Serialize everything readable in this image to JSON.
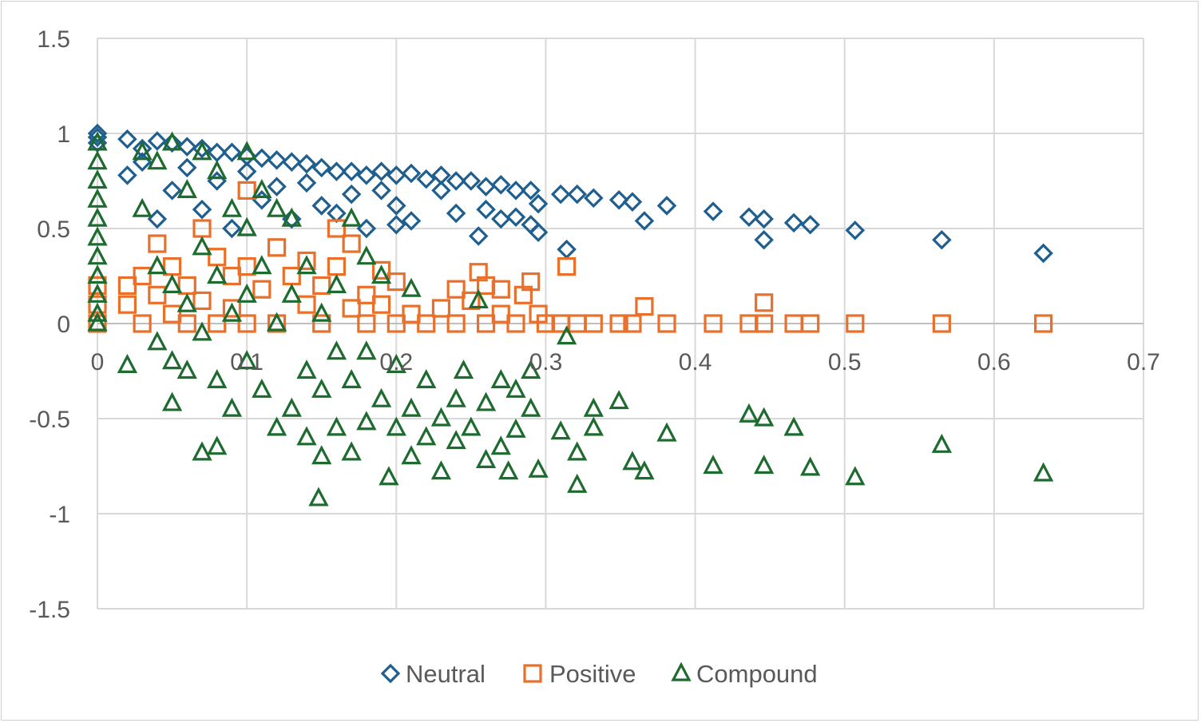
{
  "chart_data": {
    "type": "scatter",
    "title": "",
    "xlabel": "",
    "ylabel": "",
    "xlim": [
      0,
      0.7
    ],
    "ylim": [
      -1.5,
      1.5
    ],
    "xticks": [
      0,
      0.1,
      0.2,
      0.3,
      0.4,
      0.5,
      0.6,
      0.7
    ],
    "xtick_labels": [
      "0",
      "0.1",
      "0.2",
      "0.3",
      "0.4",
      "0.5",
      "0.6",
      "0.7"
    ],
    "yticks": [
      1.5,
      1,
      0.5,
      0,
      -0.5,
      -1,
      -1.5
    ],
    "ytick_labels": [
      "1.5",
      "1",
      "0.5",
      "0",
      "-0.5",
      "-1",
      "-1.5"
    ],
    "grid": true,
    "legend_position": "bottom",
    "series": [
      {
        "name": "Neutral",
        "marker": "diamond",
        "color": "#1f5f8f",
        "points": [
          [
            0,
            1
          ],
          [
            0,
            0.98
          ],
          [
            0,
            0.95
          ],
          [
            0.02,
            0.97
          ],
          [
            0.02,
            0.78
          ],
          [
            0.03,
            0.92
          ],
          [
            0.03,
            0.85
          ],
          [
            0.04,
            0.96
          ],
          [
            0.04,
            0.55
          ],
          [
            0.05,
            0.95
          ],
          [
            0.05,
            0.7
          ],
          [
            0.06,
            0.93
          ],
          [
            0.06,
            0.82
          ],
          [
            0.07,
            0.92
          ],
          [
            0.07,
            0.6
          ],
          [
            0.08,
            0.9
          ],
          [
            0.08,
            0.75
          ],
          [
            0.09,
            0.9
          ],
          [
            0.09,
            0.5
          ],
          [
            0.1,
            0.88
          ],
          [
            0.1,
            0.8
          ],
          [
            0.11,
            0.87
          ],
          [
            0.11,
            0.65
          ],
          [
            0.12,
            0.86
          ],
          [
            0.12,
            0.72
          ],
          [
            0.13,
            0.85
          ],
          [
            0.13,
            0.55
          ],
          [
            0.14,
            0.84
          ],
          [
            0.14,
            0.74
          ],
          [
            0.15,
            0.82
          ],
          [
            0.15,
            0.62
          ],
          [
            0.16,
            0.8
          ],
          [
            0.16,
            0.58
          ],
          [
            0.17,
            0.8
          ],
          [
            0.17,
            0.68
          ],
          [
            0.18,
            0.78
          ],
          [
            0.18,
            0.5
          ],
          [
            0.19,
            0.8
          ],
          [
            0.19,
            0.7
          ],
          [
            0.2,
            0.78
          ],
          [
            0.2,
            0.62
          ],
          [
            0.2,
            0.52
          ],
          [
            0.21,
            0.79
          ],
          [
            0.21,
            0.54
          ],
          [
            0.22,
            0.76
          ],
          [
            0.23,
            0.78
          ],
          [
            0.23,
            0.7
          ],
          [
            0.24,
            0.75
          ],
          [
            0.24,
            0.58
          ],
          [
            0.25,
            0.75
          ],
          [
            0.255,
            0.46
          ],
          [
            0.26,
            0.72
          ],
          [
            0.26,
            0.6
          ],
          [
            0.27,
            0.73
          ],
          [
            0.27,
            0.55
          ],
          [
            0.28,
            0.7
          ],
          [
            0.28,
            0.56
          ],
          [
            0.29,
            0.7
          ],
          [
            0.29,
            0.52
          ],
          [
            0.295,
            0.48
          ],
          [
            0.295,
            0.63
          ],
          [
            0.31,
            0.68
          ],
          [
            0.314,
            0.39
          ],
          [
            0.321,
            0.68
          ],
          [
            0.332,
            0.66
          ],
          [
            0.349,
            0.65
          ],
          [
            0.358,
            0.64
          ],
          [
            0.366,
            0.54
          ],
          [
            0.381,
            0.62
          ],
          [
            0.412,
            0.59
          ],
          [
            0.436,
            0.56
          ],
          [
            0.446,
            0.55
          ],
          [
            0.446,
            0.44
          ],
          [
            0.466,
            0.53
          ],
          [
            0.477,
            0.52
          ],
          [
            0.507,
            0.49
          ],
          [
            0.565,
            0.44
          ],
          [
            0.633,
            0.37
          ]
        ]
      },
      {
        "name": "Positive",
        "marker": "square",
        "color": "#e8702a",
        "points": [
          [
            0,
            0
          ],
          [
            0,
            0.2
          ],
          [
            0,
            0.1
          ],
          [
            0.02,
            0.2
          ],
          [
            0.02,
            0.1
          ],
          [
            0.03,
            0.25
          ],
          [
            0.03,
            0
          ],
          [
            0.04,
            0.42
          ],
          [
            0.04,
            0.15
          ],
          [
            0.05,
            0.3
          ],
          [
            0.05,
            0.05
          ],
          [
            0.06,
            0.2
          ],
          [
            0.06,
            0
          ],
          [
            0.07,
            0.5
          ],
          [
            0.07,
            0.12
          ],
          [
            0.08,
            0.35
          ],
          [
            0.08,
            0
          ],
          [
            0.09,
            0.25
          ],
          [
            0.09,
            0.08
          ],
          [
            0.1,
            0.7
          ],
          [
            0.1,
            0.3
          ],
          [
            0.1,
            0
          ],
          [
            0.11,
            0.18
          ],
          [
            0.12,
            0.4
          ],
          [
            0.12,
            0
          ],
          [
            0.13,
            0.25
          ],
          [
            0.14,
            0.1
          ],
          [
            0.14,
            0.33
          ],
          [
            0.15,
            0.2
          ],
          [
            0.15,
            0
          ],
          [
            0.16,
            0.3
          ],
          [
            0.16,
            0.5
          ],
          [
            0.17,
            0.08
          ],
          [
            0.17,
            0.42
          ],
          [
            0.18,
            0
          ],
          [
            0.18,
            0.15
          ],
          [
            0.19,
            0.28
          ],
          [
            0.19,
            0.1
          ],
          [
            0.2,
            0
          ],
          [
            0.2,
            0.22
          ],
          [
            0.21,
            0.05
          ],
          [
            0.22,
            0
          ],
          [
            0.23,
            0.08
          ],
          [
            0.24,
            0
          ],
          [
            0.24,
            0.18
          ],
          [
            0.25,
            0.12
          ],
          [
            0.255,
            0.27
          ],
          [
            0.26,
            0
          ],
          [
            0.26,
            0.2
          ],
          [
            0.27,
            0.05
          ],
          [
            0.27,
            0.18
          ],
          [
            0.28,
            0
          ],
          [
            0.285,
            0.15
          ],
          [
            0.29,
            0.22
          ],
          [
            0.295,
            0.05
          ],
          [
            0.3,
            0
          ],
          [
            0.314,
            0.3
          ],
          [
            0.31,
            0
          ],
          [
            0.321,
            0
          ],
          [
            0.332,
            0
          ],
          [
            0.349,
            0
          ],
          [
            0.358,
            0
          ],
          [
            0.366,
            0.09
          ],
          [
            0.381,
            0
          ],
          [
            0.412,
            0
          ],
          [
            0.436,
            0
          ],
          [
            0.446,
            0
          ],
          [
            0.446,
            0.11
          ],
          [
            0.466,
            0
          ],
          [
            0.477,
            0
          ],
          [
            0.507,
            0
          ],
          [
            0.565,
            0
          ],
          [
            0.633,
            0
          ]
        ]
      },
      {
        "name": "Compound",
        "marker": "triangle",
        "color": "#1e6b30",
        "points": [
          [
            0,
            0.95
          ],
          [
            0,
            0.85
          ],
          [
            0,
            0.75
          ],
          [
            0,
            0.65
          ],
          [
            0,
            0.55
          ],
          [
            0,
            0.45
          ],
          [
            0,
            0.35
          ],
          [
            0,
            0.25
          ],
          [
            0,
            0.15
          ],
          [
            0,
            0.05
          ],
          [
            0,
            0
          ],
          [
            0.02,
            -0.22
          ],
          [
            0.03,
            0.9
          ],
          [
            0.03,
            0.6
          ],
          [
            0.04,
            0.85
          ],
          [
            0.04,
            0.3
          ],
          [
            0.04,
            -0.1
          ],
          [
            0.05,
            0.95
          ],
          [
            0.05,
            0.2
          ],
          [
            0.05,
            -0.2
          ],
          [
            0.05,
            -0.42
          ],
          [
            0.06,
            0.7
          ],
          [
            0.06,
            0.1
          ],
          [
            0.06,
            -0.25
          ],
          [
            0.07,
            0.9
          ],
          [
            0.07,
            0.4
          ],
          [
            0.07,
            -0.05
          ],
          [
            0.07,
            -0.68
          ],
          [
            0.08,
            0.8
          ],
          [
            0.08,
            0.25
          ],
          [
            0.08,
            -0.3
          ],
          [
            0.08,
            -0.65
          ],
          [
            0.09,
            0.6
          ],
          [
            0.09,
            0.05
          ],
          [
            0.09,
            -0.45
          ],
          [
            0.1,
            0.9
          ],
          [
            0.1,
            0.5
          ],
          [
            0.1,
            0.15
          ],
          [
            0.1,
            -0.2
          ],
          [
            0.11,
            0.7
          ],
          [
            0.11,
            0.3
          ],
          [
            0.11,
            -0.35
          ],
          [
            0.12,
            0.6
          ],
          [
            0.12,
            0
          ],
          [
            0.12,
            -0.55
          ],
          [
            0.13,
            0.55
          ],
          [
            0.13,
            0.15
          ],
          [
            0.13,
            -0.45
          ],
          [
            0.14,
            0.3
          ],
          [
            0.14,
            -0.25
          ],
          [
            0.14,
            -0.6
          ],
          [
            0.15,
            0.05
          ],
          [
            0.15,
            -0.35
          ],
          [
            0.15,
            -0.7
          ],
          [
            0.148,
            -0.92
          ],
          [
            0.16,
            0.2
          ],
          [
            0.16,
            -0.15
          ],
          [
            0.16,
            -0.55
          ],
          [
            0.17,
            0.55
          ],
          [
            0.17,
            -0.3
          ],
          [
            0.17,
            -0.68
          ],
          [
            0.18,
            0.35
          ],
          [
            0.18,
            -0.15
          ],
          [
            0.18,
            -0.52
          ],
          [
            0.19,
            0.25
          ],
          [
            0.19,
            -0.4
          ],
          [
            0.195,
            -0.81
          ],
          [
            0.2,
            -0.22
          ],
          [
            0.2,
            -0.55
          ],
          [
            0.21,
            0.18
          ],
          [
            0.21,
            -0.45
          ],
          [
            0.21,
            -0.7
          ],
          [
            0.22,
            -0.3
          ],
          [
            0.22,
            -0.6
          ],
          [
            0.23,
            -0.5
          ],
          [
            0.23,
            -0.78
          ],
          [
            0.24,
            -0.4
          ],
          [
            0.24,
            -0.62
          ],
          [
            0.245,
            -0.25
          ],
          [
            0.25,
            -0.55
          ],
          [
            0.255,
            0.12
          ],
          [
            0.26,
            -0.42
          ],
          [
            0.26,
            -0.72
          ],
          [
            0.27,
            -0.3
          ],
          [
            0.27,
            -0.65
          ],
          [
            0.275,
            -0.78
          ],
          [
            0.28,
            -0.35
          ],
          [
            0.28,
            -0.56
          ],
          [
            0.29,
            -0.25
          ],
          [
            0.29,
            -0.45
          ],
          [
            0.295,
            -0.77
          ],
          [
            0.31,
            -0.57
          ],
          [
            0.314,
            -0.07
          ],
          [
            0.321,
            -0.68
          ],
          [
            0.321,
            -0.85
          ],
          [
            0.332,
            -0.45
          ],
          [
            0.332,
            -0.55
          ],
          [
            0.349,
            -0.41
          ],
          [
            0.358,
            -0.73
          ],
          [
            0.366,
            -0.78
          ],
          [
            0.381,
            -0.58
          ],
          [
            0.412,
            -0.75
          ],
          [
            0.436,
            -0.48
          ],
          [
            0.446,
            -0.5
          ],
          [
            0.446,
            -0.75
          ],
          [
            0.466,
            -0.55
          ],
          [
            0.477,
            -0.76
          ],
          [
            0.507,
            -0.81
          ],
          [
            0.565,
            -0.64
          ],
          [
            0.633,
            -0.79
          ]
        ]
      }
    ]
  }
}
